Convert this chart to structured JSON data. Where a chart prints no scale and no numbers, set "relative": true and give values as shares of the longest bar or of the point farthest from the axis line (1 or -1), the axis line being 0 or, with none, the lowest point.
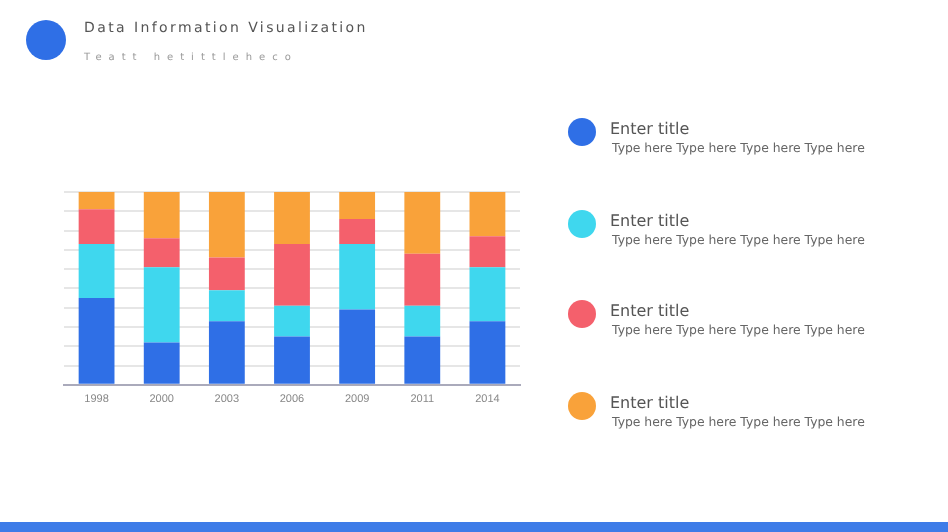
{
  "chart_data": {
    "type": "bar",
    "title": "Data Information Visualization",
    "subtitle": "Teatt hetittleheco",
    "categories": [
      "1998",
      "2000",
      "2003",
      "2006",
      "2009",
      "2011",
      "2014"
    ],
    "stacked": true,
    "relative": true,
    "grid": "y",
    "legend": "right",
    "series": [
      {
        "name": "Enter title",
        "color": "#2f6fe6",
        "values": [
          0.45,
          0.22,
          0.33,
          0.25,
          0.39,
          0.25,
          0.33
        ]
      },
      {
        "name": "Enter title",
        "color": "#3fd7ee",
        "values": [
          0.28,
          0.39,
          0.16,
          0.16,
          0.34,
          0.16,
          0.28
        ]
      },
      {
        "name": "Enter title",
        "color": "#f4606c",
        "values": [
          0.18,
          0.15,
          0.17,
          0.32,
          0.13,
          0.27,
          0.16
        ]
      },
      {
        "name": "Enter title",
        "color": "#f9a23a",
        "values": [
          0.09,
          0.24,
          0.34,
          0.27,
          0.14,
          0.32,
          0.23
        ]
      }
    ],
    "annotations": [
      "Type here Type here Type here Type here",
      "Type here Type here Type here Type here",
      "Type here Type here Type here Type here",
      "Type here Type here Type here Type here"
    ]
  }
}
